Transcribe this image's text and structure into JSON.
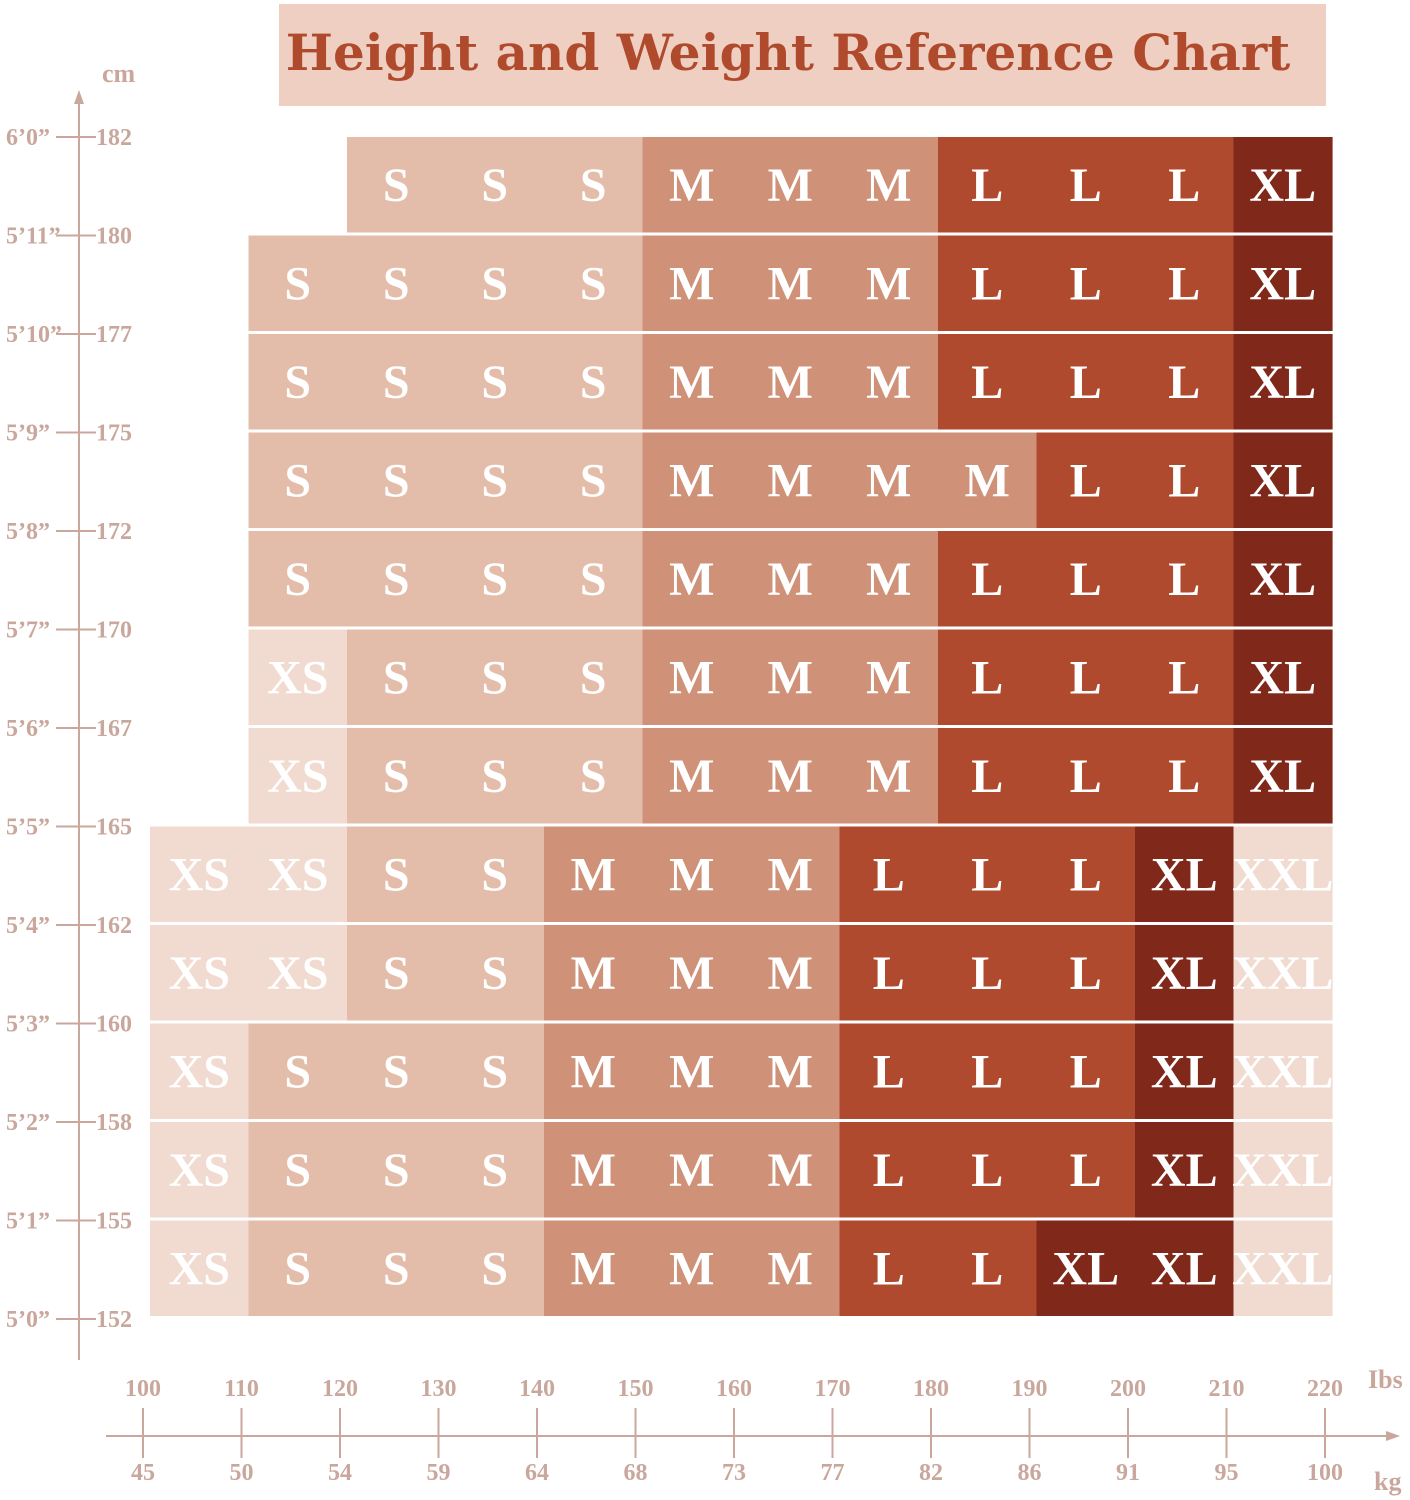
{
  "chart_data": {
    "type": "table",
    "title": "Height and Weight Reference Chart",
    "y_unit_label": "cm",
    "x_unit_lbs_label": "Ibs",
    "x_unit_kg_label": "kg",
    "lbs_ticks": [
      "100",
      "110",
      "120",
      "130",
      "140",
      "150",
      "160",
      "170",
      "180",
      "190",
      "200",
      "210",
      "220"
    ],
    "kg_ticks": [
      "45",
      "50",
      "54",
      "59",
      "64",
      "68",
      "73",
      "77",
      "82",
      "86",
      "91",
      "95",
      "100"
    ],
    "height_ticks": [
      {
        "ft": "6’0”",
        "cm": "182"
      },
      {
        "ft": "5’11”",
        "cm": "180"
      },
      {
        "ft": "5’10”",
        "cm": "177"
      },
      {
        "ft": "5’9”",
        "cm": "175"
      },
      {
        "ft": "5’8”",
        "cm": "172"
      },
      {
        "ft": "5’7”",
        "cm": "170"
      },
      {
        "ft": "5’6”",
        "cm": "167"
      },
      {
        "ft": "5’5”",
        "cm": "165"
      },
      {
        "ft": "5’4”",
        "cm": "162"
      },
      {
        "ft": "5’3”",
        "cm": "160"
      },
      {
        "ft": "5’2”",
        "cm": "158"
      },
      {
        "ft": "5’1”",
        "cm": "155"
      },
      {
        "ft": "5’0”",
        "cm": "152"
      }
    ],
    "rows": [
      {
        "height_cm": "180-182",
        "start_lbs": 120,
        "sizes": [
          "S",
          "S",
          "S",
          "M",
          "M",
          "M",
          "L",
          "L",
          "L",
          "XL"
        ]
      },
      {
        "height_cm": "177-180",
        "start_lbs": 110,
        "sizes": [
          "S",
          "S",
          "S",
          "S",
          "M",
          "M",
          "M",
          "L",
          "L",
          "L",
          "XL"
        ]
      },
      {
        "height_cm": "175-177",
        "start_lbs": 110,
        "sizes": [
          "S",
          "S",
          "S",
          "S",
          "M",
          "M",
          "M",
          "L",
          "L",
          "L",
          "XL"
        ]
      },
      {
        "height_cm": "172-175",
        "start_lbs": 110,
        "sizes": [
          "S",
          "S",
          "S",
          "S",
          "M",
          "M",
          "M",
          "M",
          "L",
          "L",
          "XL"
        ]
      },
      {
        "height_cm": "170-172",
        "start_lbs": 110,
        "sizes": [
          "S",
          "S",
          "S",
          "S",
          "M",
          "M",
          "M",
          "L",
          "L",
          "L",
          "XL"
        ]
      },
      {
        "height_cm": "167-170",
        "start_lbs": 110,
        "sizes": [
          "XS",
          "S",
          "S",
          "S",
          "M",
          "M",
          "M",
          "L",
          "L",
          "L",
          "XL"
        ]
      },
      {
        "height_cm": "165-167",
        "start_lbs": 110,
        "sizes": [
          "XS",
          "S",
          "S",
          "S",
          "M",
          "M",
          "M",
          "L",
          "L",
          "L",
          "XL"
        ]
      },
      {
        "height_cm": "162-165",
        "start_lbs": 100,
        "sizes": [
          "XS",
          "XS",
          "S",
          "S",
          "M",
          "M",
          "M",
          "L",
          "L",
          "L",
          "XL",
          "XXL"
        ]
      },
      {
        "height_cm": "160-162",
        "start_lbs": 100,
        "sizes": [
          "XS",
          "XS",
          "S",
          "S",
          "M",
          "M",
          "M",
          "L",
          "L",
          "L",
          "XL",
          "XXL"
        ]
      },
      {
        "height_cm": "158-160",
        "start_lbs": 100,
        "sizes": [
          "XS",
          "S",
          "S",
          "S",
          "M",
          "M",
          "M",
          "L",
          "L",
          "L",
          "XL",
          "XXL"
        ]
      },
      {
        "height_cm": "155-158",
        "start_lbs": 100,
        "sizes": [
          "XS",
          "S",
          "S",
          "S",
          "M",
          "M",
          "M",
          "L",
          "L",
          "L",
          "XL",
          "XXL"
        ]
      },
      {
        "height_cm": "152-155",
        "start_lbs": 100,
        "sizes": [
          "XS",
          "S",
          "S",
          "S",
          "M",
          "M",
          "M",
          "L",
          "L",
          "XL",
          "XL",
          "XXL"
        ]
      }
    ],
    "size_colors": {
      "XS": "#f1dbd1",
      "S": "#e3bda9",
      "M": "#cf9278",
      "L": "#b04a2f",
      "XL": "#80281a",
      "XXL": "#f1dbd1"
    }
  }
}
